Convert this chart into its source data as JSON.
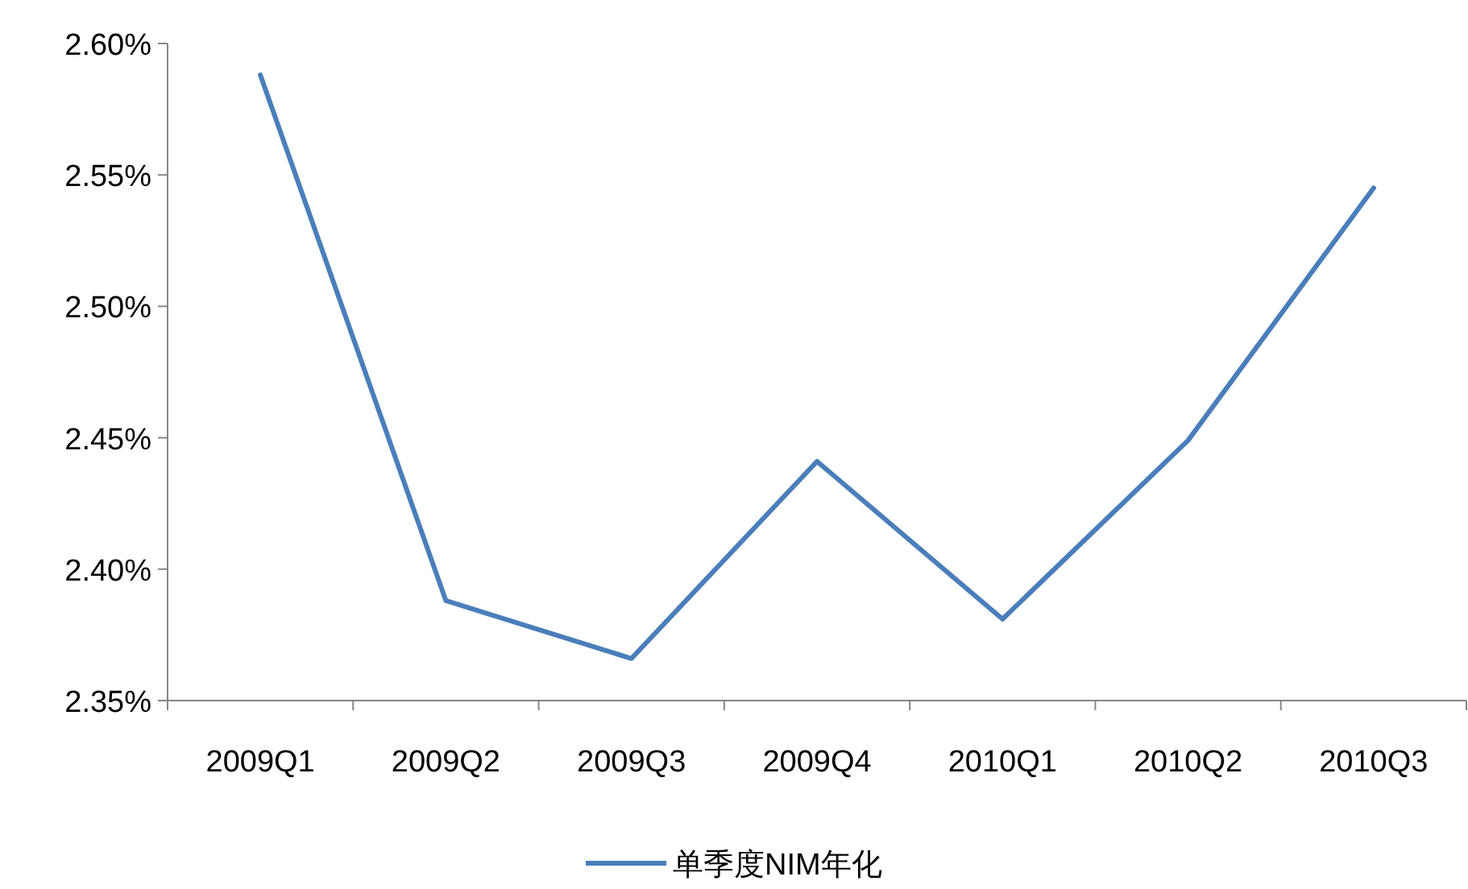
{
  "chart_data": {
    "type": "line",
    "categories": [
      "2009Q1",
      "2009Q2",
      "2009Q3",
      "2009Q4",
      "2010Q1",
      "2010Q2",
      "2010Q3"
    ],
    "series": [
      {
        "name": "单季度NIM年化",
        "color": "#4a7ebb",
        "values": [
          2.588,
          2.388,
          2.366,
          2.441,
          2.381,
          2.449,
          2.545
        ]
      }
    ],
    "ylim": [
      2.35,
      2.6
    ],
    "yticks": [
      {
        "value": 2.35,
        "label": "2.35%"
      },
      {
        "value": 2.4,
        "label": "2.40%"
      },
      {
        "value": 2.45,
        "label": "2.45%"
      },
      {
        "value": 2.5,
        "label": "2.50%"
      },
      {
        "value": 2.55,
        "label": "2.55%"
      },
      {
        "value": 2.6,
        "label": "2.60%"
      }
    ],
    "legend": "bottom"
  }
}
